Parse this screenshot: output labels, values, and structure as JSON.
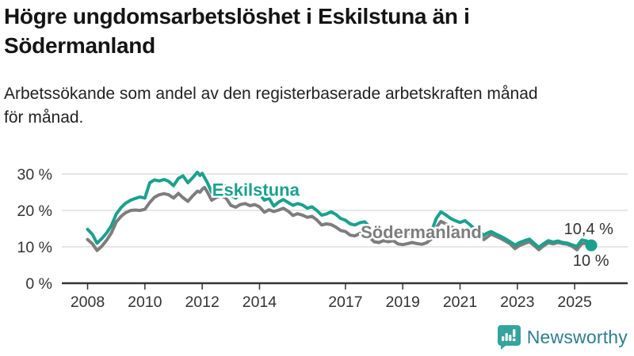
{
  "header": {
    "title_line1": "Högre ungdomsarbetslöshet i Eskilstuna än i",
    "title_line2": "Södermanland",
    "subtitle_line1": "Arbetssökande som andel av den registerbaserade arbetskraften månad",
    "subtitle_line2": "för månad."
  },
  "footer": {
    "brand": "Newsworthy"
  },
  "colors": {
    "eskilstuna": "#1aa18e",
    "sodermanland": "#7d7d7d",
    "grid": "#cccccc",
    "axis": "#333333",
    "tick_text": "#333333",
    "logo_icon": "#35a39e",
    "logo_text": "#2d7e8e"
  },
  "chart_data": {
    "type": "line",
    "title": "Högre ungdomsarbetslöshet i Eskilstuna än i Södermanland",
    "subtitle": "Arbetssökande som andel av den registerbaserade arbetskraften månad för månad.",
    "unit": "%",
    "grid": true,
    "xlim": [
      2007.1,
      2026.85
    ],
    "ylim": [
      0,
      35
    ],
    "x_ticks": [
      2008,
      2010,
      2012,
      2014,
      2017,
      2019,
      2021,
      2023,
      2025
    ],
    "x_tick_labels": [
      "2008",
      "2010",
      "2012",
      "2014",
      "2017",
      "2019",
      "2021",
      "2023",
      "2025"
    ],
    "y_ticks": [
      0,
      10,
      20,
      30
    ],
    "y_tick_labels": [
      "0 %",
      "10 %",
      "20 %",
      "30 %"
    ],
    "series": [
      {
        "name": "Eskilstuna",
        "color": "#1aa18e",
        "end_label": "10,4 %",
        "end_value": 10.4,
        "end_dot": true,
        "points": [
          [
            2008.0,
            14.8
          ],
          [
            2008.17,
            13.4
          ],
          [
            2008.33,
            11.0
          ],
          [
            2008.5,
            12.3
          ],
          [
            2008.67,
            13.9
          ],
          [
            2008.83,
            15.8
          ],
          [
            2009.0,
            19.0
          ],
          [
            2009.17,
            20.8
          ],
          [
            2009.33,
            22.0
          ],
          [
            2009.5,
            22.8
          ],
          [
            2009.67,
            23.3
          ],
          [
            2009.83,
            23.7
          ],
          [
            2010.0,
            23.4
          ],
          [
            2010.17,
            27.6
          ],
          [
            2010.33,
            28.4
          ],
          [
            2010.5,
            28.1
          ],
          [
            2010.67,
            28.5
          ],
          [
            2010.83,
            28.0
          ],
          [
            2011.0,
            26.8
          ],
          [
            2011.17,
            28.8
          ],
          [
            2011.33,
            29.5
          ],
          [
            2011.5,
            27.6
          ],
          [
            2011.67,
            29.0
          ],
          [
            2011.83,
            30.5
          ],
          [
            2011.92,
            29.6
          ],
          [
            2012.0,
            30.2
          ],
          [
            2012.17,
            27.8
          ],
          [
            2012.33,
            25.0
          ],
          [
            2012.5,
            26.6
          ],
          [
            2012.67,
            27.3
          ],
          [
            2012.83,
            26.5
          ],
          [
            2013.0,
            24.2
          ],
          [
            2013.17,
            23.4
          ],
          [
            2013.33,
            24.6
          ],
          [
            2013.5,
            25.4
          ],
          [
            2013.67,
            24.6
          ],
          [
            2013.83,
            25.2
          ],
          [
            2014.0,
            24.6
          ],
          [
            2014.17,
            22.8
          ],
          [
            2014.33,
            23.4
          ],
          [
            2014.5,
            21.2
          ],
          [
            2014.67,
            22.3
          ],
          [
            2014.83,
            23.0
          ],
          [
            2015.0,
            22.2
          ],
          [
            2015.17,
            21.4
          ],
          [
            2015.33,
            21.9
          ],
          [
            2015.5,
            21.5
          ],
          [
            2015.67,
            20.6
          ],
          [
            2015.83,
            21.0
          ],
          [
            2016.0,
            20.0
          ],
          [
            2016.17,
            18.7
          ],
          [
            2016.33,
            19.0
          ],
          [
            2016.5,
            19.6
          ],
          [
            2016.67,
            18.9
          ],
          [
            2016.83,
            17.8
          ],
          [
            2017.0,
            17.3
          ],
          [
            2017.17,
            16.3
          ],
          [
            2017.33,
            16.0
          ],
          [
            2017.5,
            16.6
          ],
          [
            2017.67,
            16.9
          ],
          [
            2017.83,
            15.6
          ],
          [
            2018.0,
            14.6
          ],
          [
            2018.17,
            14.2
          ],
          [
            2018.33,
            14.5
          ],
          [
            2018.5,
            14.1
          ],
          [
            2018.67,
            13.7
          ],
          [
            2018.83,
            13.2
          ],
          [
            2019.0,
            13.5
          ],
          [
            2019.17,
            13.8
          ],
          [
            2019.33,
            13.4
          ],
          [
            2019.5,
            13.0
          ],
          [
            2019.67,
            12.8
          ],
          [
            2019.83,
            13.2
          ],
          [
            2020.0,
            14.2
          ],
          [
            2020.17,
            17.8
          ],
          [
            2020.33,
            19.6
          ],
          [
            2020.5,
            18.8
          ],
          [
            2020.67,
            17.8
          ],
          [
            2020.83,
            17.2
          ],
          [
            2021.0,
            16.7
          ],
          [
            2021.17,
            17.2
          ],
          [
            2021.33,
            16.2
          ],
          [
            2021.5,
            15.0
          ],
          [
            2021.67,
            14.4
          ],
          [
            2021.83,
            13.1
          ],
          [
            2021.92,
            13.7
          ],
          [
            2022.08,
            14.2
          ],
          [
            2022.25,
            13.5
          ],
          [
            2022.42,
            12.9
          ],
          [
            2022.58,
            12.2
          ],
          [
            2022.75,
            11.4
          ],
          [
            2022.92,
            10.5
          ],
          [
            2023.08,
            11.2
          ],
          [
            2023.25,
            11.7
          ],
          [
            2023.42,
            12.1
          ],
          [
            2023.58,
            11.0
          ],
          [
            2023.75,
            9.9
          ],
          [
            2023.92,
            10.9
          ],
          [
            2024.08,
            11.7
          ],
          [
            2024.25,
            11.3
          ],
          [
            2024.42,
            11.6
          ],
          [
            2024.58,
            11.2
          ],
          [
            2024.75,
            11.0
          ],
          [
            2024.92,
            10.5
          ],
          [
            2025.08,
            10.1
          ],
          [
            2025.25,
            11.9
          ],
          [
            2025.42,
            11.6
          ],
          [
            2025.58,
            10.4
          ]
        ]
      },
      {
        "name": "Södermanland",
        "color": "#7d7d7d",
        "end_label": "10 %",
        "end_value": 10.0,
        "end_dot": false,
        "points": [
          [
            2008.0,
            12.0
          ],
          [
            2008.17,
            10.8
          ],
          [
            2008.33,
            9.0
          ],
          [
            2008.5,
            10.2
          ],
          [
            2008.67,
            11.9
          ],
          [
            2008.83,
            13.8
          ],
          [
            2009.0,
            16.8
          ],
          [
            2009.17,
            18.4
          ],
          [
            2009.33,
            19.4
          ],
          [
            2009.5,
            20.0
          ],
          [
            2009.67,
            20.1
          ],
          [
            2009.83,
            20.0
          ],
          [
            2010.0,
            20.3
          ],
          [
            2010.17,
            22.2
          ],
          [
            2010.33,
            23.6
          ],
          [
            2010.5,
            24.3
          ],
          [
            2010.67,
            24.6
          ],
          [
            2010.83,
            24.3
          ],
          [
            2011.0,
            23.4
          ],
          [
            2011.17,
            24.7
          ],
          [
            2011.33,
            23.5
          ],
          [
            2011.5,
            22.5
          ],
          [
            2011.67,
            24.0
          ],
          [
            2011.83,
            25.3
          ],
          [
            2011.92,
            25.0
          ],
          [
            2012.0,
            25.8
          ],
          [
            2012.08,
            26.3
          ],
          [
            2012.17,
            25.2
          ],
          [
            2012.33,
            22.8
          ],
          [
            2012.5,
            23.6
          ],
          [
            2012.67,
            24.0
          ],
          [
            2012.83,
            23.4
          ],
          [
            2013.0,
            21.4
          ],
          [
            2013.17,
            20.9
          ],
          [
            2013.33,
            21.6
          ],
          [
            2013.5,
            21.9
          ],
          [
            2013.67,
            21.3
          ],
          [
            2013.83,
            21.6
          ],
          [
            2014.0,
            21.0
          ],
          [
            2014.17,
            19.5
          ],
          [
            2014.33,
            20.2
          ],
          [
            2014.5,
            19.7
          ],
          [
            2014.67,
            20.1
          ],
          [
            2014.83,
            20.6
          ],
          [
            2015.0,
            19.8
          ],
          [
            2015.17,
            18.6
          ],
          [
            2015.33,
            19.1
          ],
          [
            2015.5,
            18.7
          ],
          [
            2015.67,
            18.1
          ],
          [
            2015.83,
            18.4
          ],
          [
            2016.0,
            17.4
          ],
          [
            2016.17,
            16.0
          ],
          [
            2016.33,
            16.3
          ],
          [
            2016.5,
            16.1
          ],
          [
            2016.67,
            15.4
          ],
          [
            2016.83,
            14.5
          ],
          [
            2017.0,
            14.2
          ],
          [
            2017.17,
            13.2
          ],
          [
            2017.33,
            13.0
          ],
          [
            2017.5,
            13.7
          ],
          [
            2017.67,
            13.9
          ],
          [
            2017.83,
            12.7
          ],
          [
            2018.0,
            11.4
          ],
          [
            2018.17,
            11.2
          ],
          [
            2018.33,
            11.7
          ],
          [
            2018.5,
            11.4
          ],
          [
            2018.67,
            11.7
          ],
          [
            2018.83,
            10.8
          ],
          [
            2019.0,
            10.6
          ],
          [
            2019.17,
            10.9
          ],
          [
            2019.33,
            11.2
          ],
          [
            2019.5,
            10.9
          ],
          [
            2019.67,
            10.7
          ],
          [
            2019.83,
            11.1
          ],
          [
            2020.0,
            12.2
          ],
          [
            2020.17,
            15.3
          ],
          [
            2020.33,
            17.0
          ],
          [
            2020.5,
            16.3
          ],
          [
            2020.67,
            15.5
          ],
          [
            2020.83,
            15.0
          ],
          [
            2021.0,
            14.6
          ],
          [
            2021.17,
            15.0
          ],
          [
            2021.33,
            14.1
          ],
          [
            2021.5,
            13.2
          ],
          [
            2021.67,
            12.8
          ],
          [
            2021.83,
            12.0
          ],
          [
            2021.92,
            12.5
          ],
          [
            2022.08,
            13.5
          ],
          [
            2022.25,
            12.9
          ],
          [
            2022.42,
            12.3
          ],
          [
            2022.58,
            11.6
          ],
          [
            2022.75,
            10.8
          ],
          [
            2022.92,
            9.5
          ],
          [
            2023.08,
            10.4
          ],
          [
            2023.25,
            10.9
          ],
          [
            2023.42,
            11.4
          ],
          [
            2023.58,
            10.4
          ],
          [
            2023.75,
            9.2
          ],
          [
            2023.92,
            10.3
          ],
          [
            2024.08,
            11.1
          ],
          [
            2024.25,
            10.8
          ],
          [
            2024.42,
            11.2
          ],
          [
            2024.58,
            10.9
          ],
          [
            2024.75,
            10.7
          ],
          [
            2024.92,
            10.1
          ],
          [
            2025.08,
            9.2
          ],
          [
            2025.25,
            10.9
          ],
          [
            2025.42,
            10.9
          ],
          [
            2025.58,
            10.0
          ]
        ]
      }
    ],
    "annotations": [
      {
        "text": "Eskilstuna",
        "x_year": 2012.35,
        "y_value": 24.0,
        "color": "#1aa18e",
        "anchor": "start",
        "bold": true,
        "halo": true,
        "size": 22
      },
      {
        "text": "Södermanland",
        "x_year": 2017.53,
        "y_value": 12.4,
        "color": "#7d7d7d",
        "anchor": "start",
        "bold": true,
        "halo": true,
        "size": 22
      },
      {
        "text": "10,4 %",
        "x_year": 2026.35,
        "y_value": 13.5,
        "color": "#333333",
        "anchor": "end",
        "bold": false,
        "halo": false,
        "size": 20
      },
      {
        "text": "10 %",
        "x_year": 2026.2,
        "y_value": 4.8,
        "color": "#333333",
        "anchor": "end",
        "bold": false,
        "halo": false,
        "size": 20
      }
    ],
    "legend_position": "inline-labels"
  }
}
